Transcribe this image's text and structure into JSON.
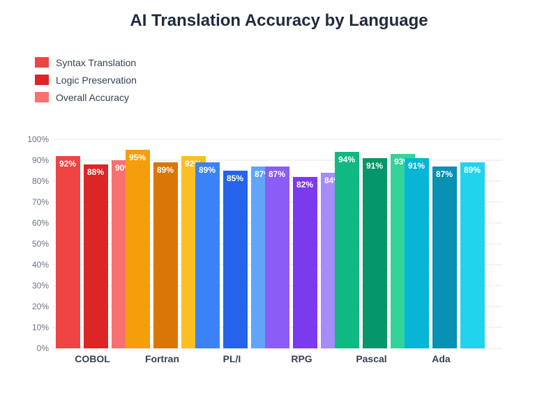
{
  "chart_data": {
    "type": "bar",
    "title": "AI Translation Accuracy by Language",
    "categories": [
      "COBOL",
      "Fortran",
      "PL/I",
      "RPG",
      "Pascal",
      "Ada"
    ],
    "series": [
      {
        "name": "Syntax Translation",
        "values": [
          92,
          95,
          89,
          87,
          94,
          91
        ]
      },
      {
        "name": "Logic Preservation",
        "values": [
          88,
          89,
          85,
          82,
          91,
          87
        ]
      },
      {
        "name": "Overall Accuracy",
        "values": [
          90,
          92,
          87,
          84,
          93,
          89
        ]
      }
    ],
    "legend_colors": [
      "#ef4444",
      "#dc2626",
      "#f87171"
    ],
    "category_colors": [
      [
        "#ef4444",
        "#dc2626",
        "#f87171"
      ],
      [
        "#f59e0b",
        "#d97706",
        "#fbbf24"
      ],
      [
        "#3b82f6",
        "#2563eb",
        "#60a5fa"
      ],
      [
        "#8b5cf6",
        "#7c3aed",
        "#a78bfa"
      ],
      [
        "#10b981",
        "#059669",
        "#34d399"
      ],
      [
        "#06b6d4",
        "#0891b2",
        "#22d3ee"
      ]
    ],
    "y_ticks": [
      "0%",
      "10%",
      "20%",
      "30%",
      "40%",
      "50%",
      "60%",
      "70%",
      "80%",
      "90%",
      "100%"
    ],
    "ylim": [
      0,
      100
    ],
    "value_suffix": "%",
    "legend_position": "top-left",
    "grid": true
  }
}
